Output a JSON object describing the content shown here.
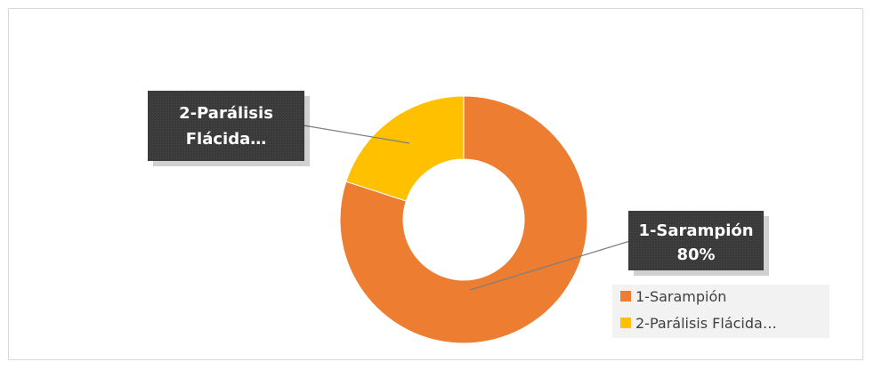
{
  "chart_data": {
    "type": "pie",
    "variant": "doughnut",
    "title": "",
    "slices": [
      {
        "label": "1-Sarampión",
        "value": 80,
        "color": "#ED7D31"
      },
      {
        "label": "2-Parálisis Flácida…",
        "value": 20,
        "color": "#FFC000"
      }
    ],
    "data_labels": [
      {
        "lines": [
          "1-Sarampión",
          "80%"
        ]
      },
      {
        "lines": [
          "2-Parálisis",
          "Flácida…"
        ]
      }
    ],
    "legend": {
      "placement": "bottom-right",
      "entries": [
        "1-Sarampión",
        "2-Parálisis Flácida…"
      ]
    },
    "label_box_color": "#3A3A3A"
  }
}
